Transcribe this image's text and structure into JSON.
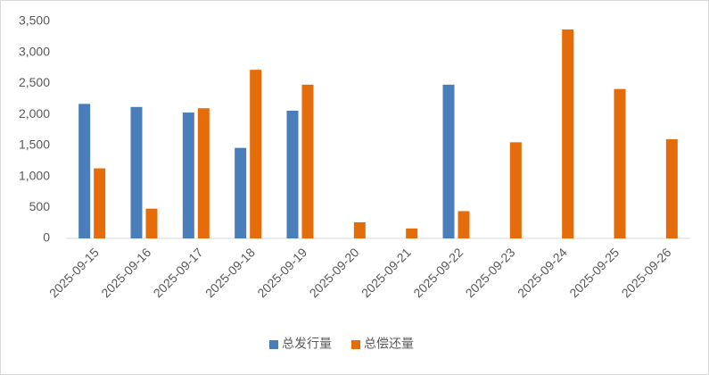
{
  "chart_data": {
    "type": "bar",
    "categories": [
      "2025-09-15",
      "2025-09-16",
      "2025-09-17",
      "2025-09-18",
      "2025-09-19",
      "2025-09-20",
      "2025-09-21",
      "2025-09-22",
      "2025-09-23",
      "2025-09-24",
      "2025-09-25",
      "2025-09-26"
    ],
    "series": [
      {
        "name": "总发行量",
        "color": "#4a7ebb",
        "values": [
          2170,
          2120,
          2030,
          1460,
          2060,
          null,
          null,
          2480,
          null,
          null,
          null,
          null
        ]
      },
      {
        "name": "总偿还量",
        "color": "#e46c0a",
        "values": [
          1130,
          480,
          2100,
          2720,
          2480,
          260,
          160,
          440,
          1550,
          3370,
          2410,
          1600
        ]
      }
    ],
    "ylim": [
      0,
      3500
    ],
    "yticks": [
      0,
      500,
      {
        "value": 1000,
        "label": "1,000"
      },
      {
        "value": 1500,
        "label": "1,500"
      },
      {
        "value": 2000,
        "label": "2,000"
      },
      {
        "value": 2500,
        "label": "2,500"
      },
      {
        "value": 3000,
        "label": "3,000"
      },
      {
        "value": 3500,
        "label": "3,500"
      }
    ],
    "grid": false,
    "legend": "bottom"
  }
}
